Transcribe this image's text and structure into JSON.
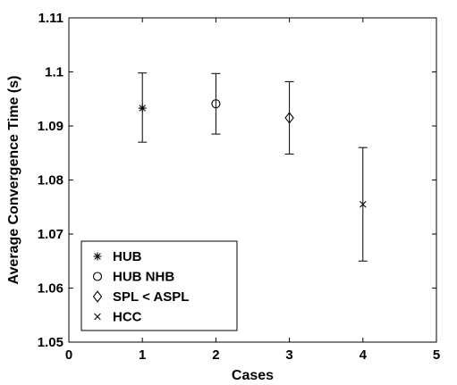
{
  "chart_data": {
    "type": "scatter",
    "title": "",
    "xlabel": "Cases",
    "ylabel": "Average Convergence Time (s)",
    "xlim": [
      0,
      5
    ],
    "ylim": [
      1.05,
      1.11
    ],
    "x_ticks": [
      "0",
      "1",
      "2",
      "3",
      "4",
      "5"
    ],
    "y_ticks": [
      "1.05",
      "1.06",
      "1.07",
      "1.08",
      "1.09",
      "1.1",
      "1.11"
    ],
    "grid": false,
    "legend_position": "bottom-left",
    "error_bars": true,
    "series": [
      {
        "name": "HUB",
        "marker": "asterisk",
        "x": [
          1
        ],
        "y": [
          1.0933
        ],
        "err_low": [
          1.087
        ],
        "err_high": [
          1.0998
        ]
      },
      {
        "name": "HUB NHB",
        "marker": "circle",
        "x": [
          2
        ],
        "y": [
          1.0941
        ],
        "err_low": [
          1.0885
        ],
        "err_high": [
          1.0997
        ]
      },
      {
        "name": "SPL < ASPL",
        "marker": "diamond",
        "x": [
          3
        ],
        "y": [
          1.0915
        ],
        "err_low": [
          1.0848
        ],
        "err_high": [
          1.0982
        ]
      },
      {
        "name": "HCC",
        "marker": "cross",
        "x": [
          4
        ],
        "y": [
          1.0755
        ],
        "err_low": [
          1.065
        ],
        "err_high": [
          1.086
        ]
      }
    ]
  }
}
